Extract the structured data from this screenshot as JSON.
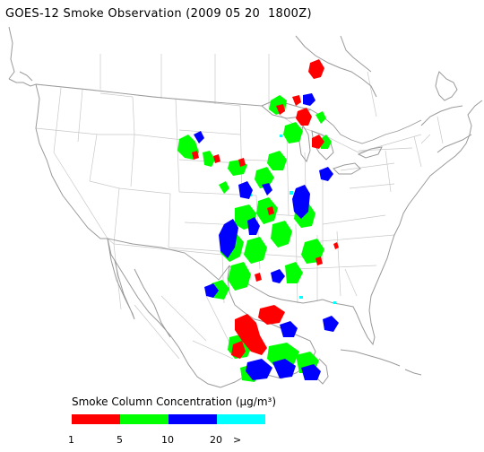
{
  "title": "GOES-12 Smoke Observation (2009 05 20  1800Z)",
  "legend": {
    "title": "Smoke Column Concentration (µg/m³)",
    "colors": [
      "#ff0000",
      "#00ff00",
      "#0000ff",
      "#00ffff"
    ],
    "tick_labels": [
      "1",
      "5",
      "10",
      "20",
      ">"
    ]
  },
  "map": {
    "region": "Contiguous United States and surrounding areas",
    "smoke_color_meaning": {
      "red": "1-5 µg/m³",
      "green": "5-10 µg/m³",
      "blue": "10-20 µg/m³",
      "cyan": "> 20 µg/m³"
    }
  }
}
